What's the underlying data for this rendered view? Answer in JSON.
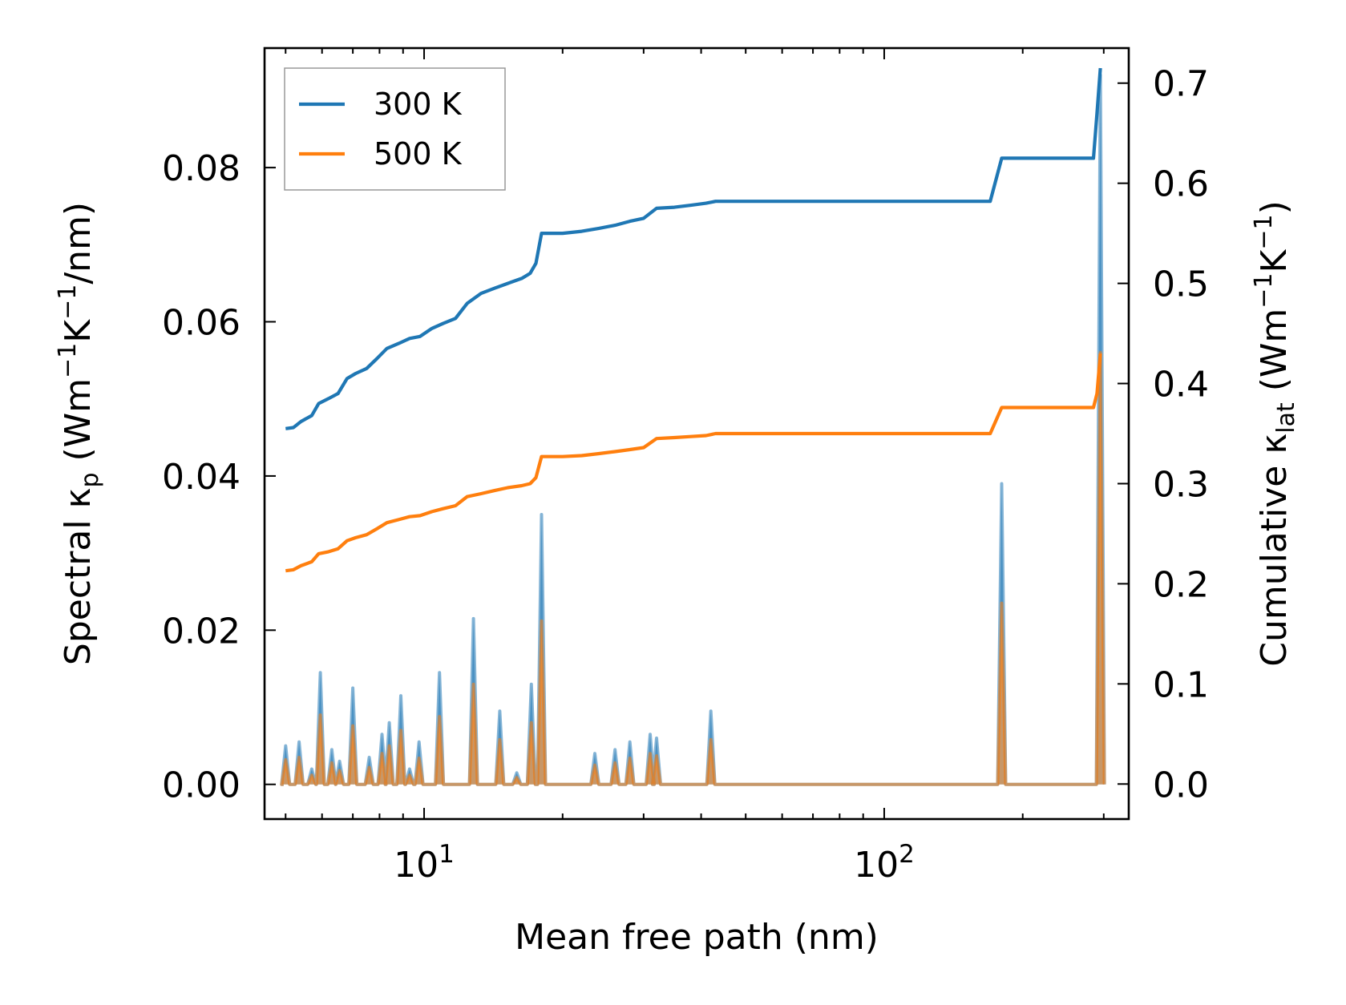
{
  "chart_data": {
    "type": "line",
    "xlabel": "Mean free path (nm)",
    "xscale": "log",
    "xlim": [
      4.5,
      340
    ],
    "x_ticks": [
      {
        "value": 10,
        "base": "10",
        "exp": "1"
      },
      {
        "value": 100,
        "base": "10",
        "exp": "2"
      }
    ],
    "left_axis": {
      "label_parts": {
        "prefix": "Spectral κ",
        "sub": "p",
        "mid": " (Wm",
        "sup1": "−1",
        "k": "K",
        "sup2": "−1",
        "suffix": "/nm)"
      },
      "ylim": [
        -0.0045,
        0.0955
      ],
      "ticks": [
        "0.00",
        "0.02",
        "0.04",
        "0.06",
        "0.08"
      ],
      "tick_values": [
        0,
        0.02,
        0.04,
        0.06,
        0.08
      ]
    },
    "right_axis": {
      "label_parts": {
        "prefix": "Cumulative κ",
        "sub": "lat",
        "mid": " (Wm",
        "sup1": "−1",
        "k": "K",
        "sup2": "−1",
        "suffix": ")"
      },
      "ylim": [
        -0.035,
        0.735
      ],
      "ticks": [
        "0.0",
        "0.1",
        "0.2",
        "0.3",
        "0.4",
        "0.5",
        "0.6",
        "0.7"
      ],
      "tick_values": [
        0,
        0.1,
        0.2,
        0.3,
        0.4,
        0.5,
        0.6,
        0.7
      ]
    },
    "legend": {
      "position": "top-left",
      "entries": [
        "300 K",
        "500 K"
      ]
    },
    "colors": {
      "300 K": "#1f77b4",
      "500 K": "#ff7f0e"
    },
    "series": [
      {
        "name": "300 K",
        "axis": "right",
        "kind": "cumulative",
        "x": [
          5,
          5.2,
          5.4,
          5.7,
          5.9,
          6.2,
          6.5,
          6.8,
          7.1,
          7.5,
          7.9,
          8.3,
          8.8,
          9.3,
          9.8,
          10.4,
          11.0,
          11.7,
          12.4,
          13.3,
          14.2,
          15.2,
          16.3,
          17.0,
          17.5,
          18.0,
          20,
          22,
          24,
          26,
          28,
          30,
          32,
          35,
          38,
          41,
          43,
          45,
          60,
          80,
          100,
          120,
          150,
          170,
          180,
          190,
          200,
          250,
          285,
          290,
          295
        ],
        "y": [
          0.355,
          0.356,
          0.362,
          0.368,
          0.38,
          0.385,
          0.39,
          0.405,
          0.41,
          0.415,
          0.425,
          0.435,
          0.44,
          0.445,
          0.447,
          0.455,
          0.46,
          0.465,
          0.48,
          0.49,
          0.495,
          0.5,
          0.505,
          0.51,
          0.52,
          0.55,
          0.55,
          0.552,
          0.555,
          0.558,
          0.562,
          0.565,
          0.575,
          0.576,
          0.578,
          0.58,
          0.582,
          0.582,
          0.582,
          0.582,
          0.582,
          0.582,
          0.582,
          0.582,
          0.625,
          0.625,
          0.625,
          0.625,
          0.625,
          0.67,
          0.715
        ]
      },
      {
        "name": "500 K",
        "axis": "right",
        "kind": "cumulative",
        "x": [
          5,
          5.2,
          5.4,
          5.7,
          5.9,
          6.2,
          6.5,
          6.8,
          7.1,
          7.5,
          7.9,
          8.3,
          8.8,
          9.3,
          9.8,
          10.4,
          11.0,
          11.7,
          12.4,
          13.3,
          14.2,
          15.2,
          16.3,
          17.0,
          17.5,
          18.0,
          20,
          22,
          24,
          26,
          28,
          30,
          32,
          35,
          38,
          41,
          43,
          45,
          60,
          80,
          100,
          120,
          150,
          170,
          180,
          190,
          200,
          250,
          285,
          290,
          295
        ],
        "y": [
          0.213,
          0.214,
          0.218,
          0.222,
          0.23,
          0.232,
          0.235,
          0.243,
          0.246,
          0.249,
          0.255,
          0.261,
          0.264,
          0.267,
          0.268,
          0.272,
          0.275,
          0.278,
          0.287,
          0.29,
          0.293,
          0.296,
          0.298,
          0.3,
          0.306,
          0.327,
          0.327,
          0.328,
          0.33,
          0.332,
          0.334,
          0.336,
          0.345,
          0.346,
          0.347,
          0.348,
          0.35,
          0.35,
          0.35,
          0.35,
          0.35,
          0.35,
          0.35,
          0.35,
          0.376,
          0.376,
          0.376,
          0.376,
          0.376,
          0.39,
          0.43
        ]
      },
      {
        "name": "300 K",
        "axis": "left",
        "kind": "spectral",
        "peaks": [
          [
            5.0,
            0.005
          ],
          [
            5.35,
            0.0055
          ],
          [
            5.7,
            0.002
          ],
          [
            5.95,
            0.0145
          ],
          [
            6.3,
            0.0045
          ],
          [
            6.55,
            0.003
          ],
          [
            7.0,
            0.0125
          ],
          [
            7.6,
            0.0035
          ],
          [
            8.1,
            0.0065
          ],
          [
            8.4,
            0.008
          ],
          [
            8.9,
            0.0115
          ],
          [
            9.3,
            0.002
          ],
          [
            9.75,
            0.0055
          ],
          [
            10.8,
            0.0145
          ],
          [
            12.8,
            0.0215
          ],
          [
            14.6,
            0.0095
          ],
          [
            15.9,
            0.0015
          ],
          [
            17.1,
            0.013
          ],
          [
            18.0,
            0.035
          ],
          [
            23.5,
            0.004
          ],
          [
            26,
            0.0045
          ],
          [
            28,
            0.0055
          ],
          [
            31,
            0.0065
          ],
          [
            32,
            0.006
          ],
          [
            42,
            0.0095
          ],
          [
            180,
            0.039
          ],
          [
            295,
            0.092
          ]
        ]
      },
      {
        "name": "500 K",
        "axis": "left",
        "kind": "spectral",
        "peaks": [
          [
            5.0,
            0.0032
          ],
          [
            5.35,
            0.0035
          ],
          [
            5.7,
            0.0012
          ],
          [
            5.95,
            0.009
          ],
          [
            6.3,
            0.0028
          ],
          [
            6.55,
            0.0018
          ],
          [
            7.0,
            0.0076
          ],
          [
            7.6,
            0.0022
          ],
          [
            8.1,
            0.004
          ],
          [
            8.4,
            0.005
          ],
          [
            8.9,
            0.007
          ],
          [
            9.3,
            0.0012
          ],
          [
            9.75,
            0.0034
          ],
          [
            10.8,
            0.0088
          ],
          [
            12.8,
            0.013
          ],
          [
            14.6,
            0.0058
          ],
          [
            15.9,
            0.0009
          ],
          [
            17.1,
            0.008
          ],
          [
            18.0,
            0.0212
          ],
          [
            23.5,
            0.0025
          ],
          [
            26,
            0.0028
          ],
          [
            28,
            0.0034
          ],
          [
            31,
            0.004
          ],
          [
            32,
            0.0037
          ],
          [
            42,
            0.0058
          ],
          [
            180,
            0.0235
          ],
          [
            295,
            0.056
          ]
        ]
      }
    ]
  }
}
